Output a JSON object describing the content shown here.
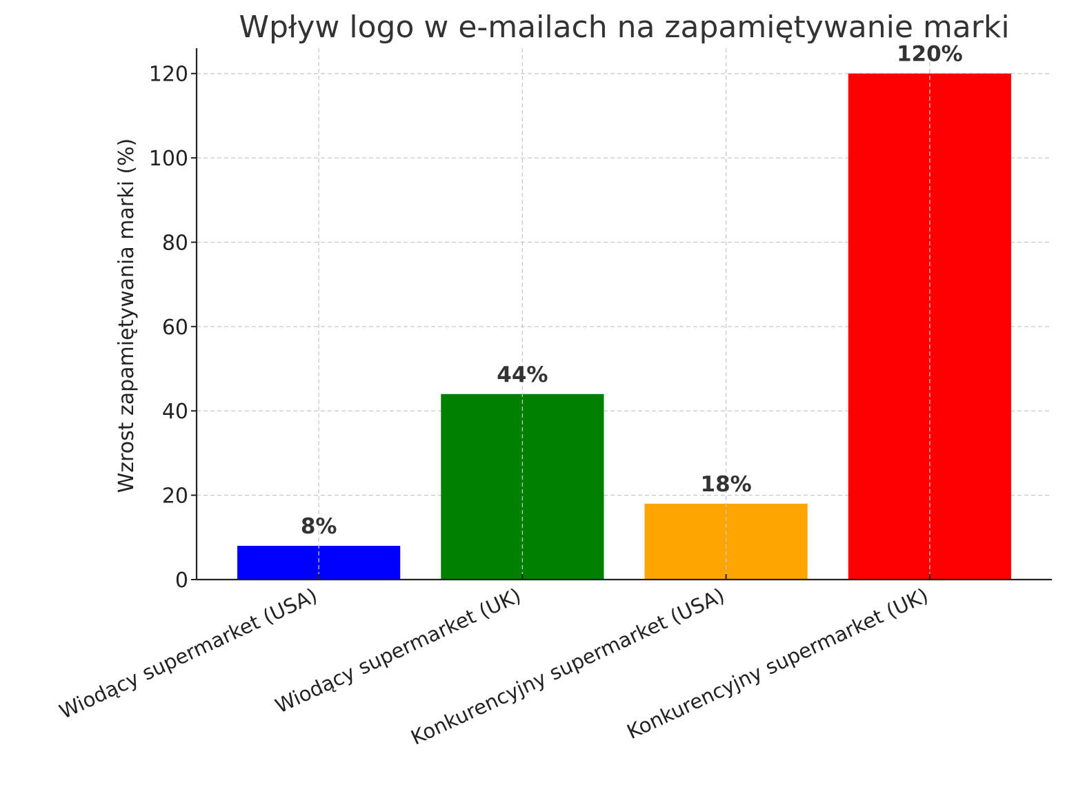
{
  "chart_data": {
    "type": "bar",
    "title": "Wpływ logo w e-mailach na zapamiętywanie marki",
    "xlabel": "",
    "ylabel": "Wzrost zapamiętywania marki (%)",
    "categories": [
      "Wiodący supermarket (USA)",
      "Wiodący supermarket (UK)",
      "Konkurencyjny supermarket (USA)",
      "Konkurencyjny supermarket (UK)"
    ],
    "values": [
      8,
      44,
      18,
      120
    ],
    "value_labels": [
      "8%",
      "44%",
      "18%",
      "120%"
    ],
    "colors": [
      "#0000ff",
      "#008000",
      "#ffa500",
      "#ff0000"
    ],
    "ylim": [
      0,
      126
    ],
    "yticks": [
      0,
      20,
      40,
      60,
      80,
      100,
      120
    ],
    "grid": true
  }
}
